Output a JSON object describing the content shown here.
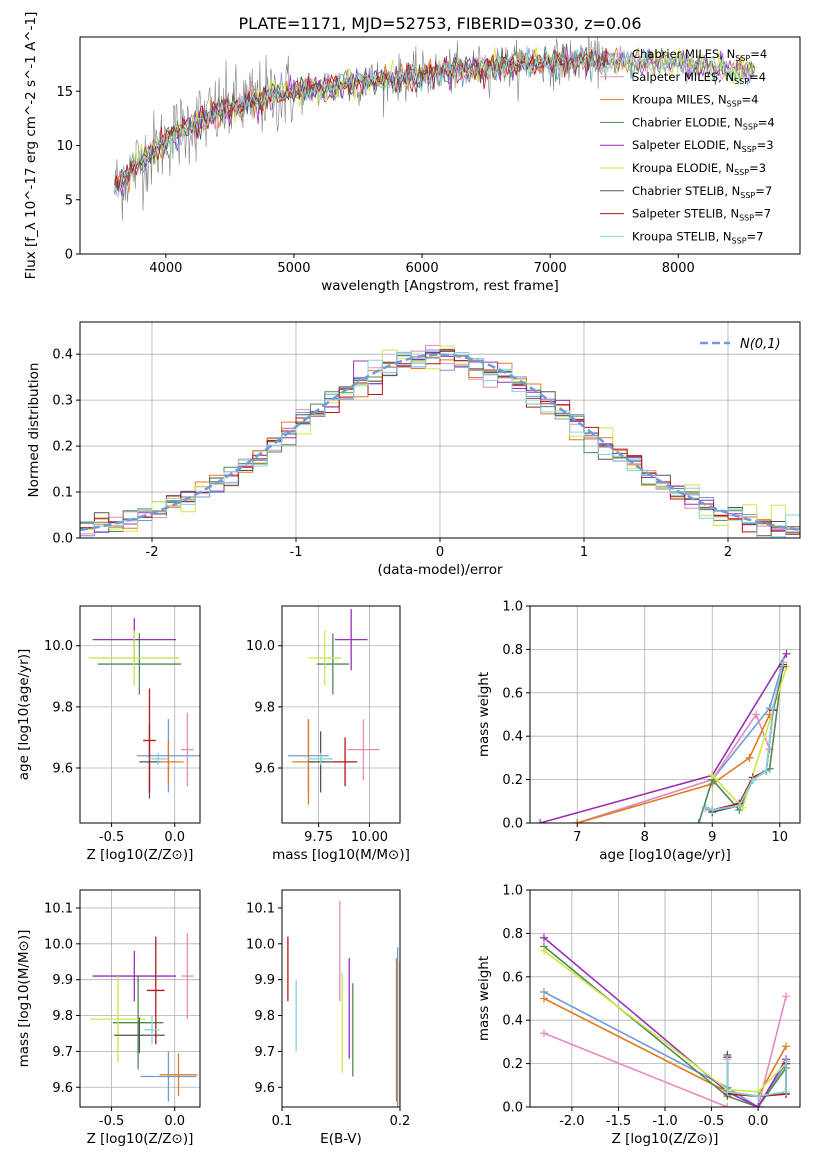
{
  "figure_title": "PLATE=1171, MJD=52753, FIBERID=0330, z=0.06",
  "models": [
    {
      "name": "Chabrier MILES",
      "nssp": "4",
      "color": "#6f9bd8"
    },
    {
      "name": "Salpeter MILES",
      "nssp": "4",
      "color": "#e58cbf"
    },
    {
      "name": "Kroupa MILES",
      "nssp": "4",
      "color": "#e07b22"
    },
    {
      "name": "Chabrier ELODIE",
      "nssp": "4",
      "color": "#4f8a57"
    },
    {
      "name": "Salpeter ELODIE",
      "nssp": "3",
      "color": "#9b30b8"
    },
    {
      "name": "Kroupa ELODIE",
      "nssp": "3",
      "color": "#cde84a"
    },
    {
      "name": "Chabrier STELIB",
      "nssp": "7",
      "color": "#555555"
    },
    {
      "name": "Salpeter STELIB",
      "nssp": "7",
      "color": "#b31717"
    },
    {
      "name": "Kroupa STELIB",
      "nssp": "7",
      "color": "#86d3e0"
    }
  ],
  "chart_data": [
    {
      "id": "spectrum",
      "type": "line",
      "xlabel": "wavelength [Angstrom, rest frame]",
      "ylabel": "Flux [f_λ 10^-17 erg cm^-2 s^-1 A^-1]",
      "xlim": [
        3330,
        8950
      ],
      "ylim": [
        0,
        20
      ],
      "xticks": [
        4000,
        5000,
        6000,
        7000,
        8000
      ],
      "yticks": [
        0,
        5,
        10,
        15
      ],
      "grid": false,
      "legend_position": "right",
      "data_color": "#808080",
      "continuum_x": [
        3600,
        3800,
        4000,
        4200,
        4500,
        4800,
        5000,
        5200,
        5500,
        5800,
        6000,
        6200,
        6500,
        6800,
        7000,
        7200,
        7400,
        7600,
        7800,
        8000,
        8200,
        8400,
        8600
      ],
      "continuum_y": [
        6.0,
        8.5,
        10.5,
        12.0,
        13.5,
        14.5,
        15.0,
        15.3,
        15.8,
        16.2,
        16.5,
        16.8,
        17.2,
        17.5,
        17.6,
        17.8,
        17.8,
        17.9,
        17.7,
        17.5,
        17.3,
        17.0,
        16.8
      ],
      "model_end_x": [
        8600,
        8600,
        8600,
        8600,
        8600,
        8600,
        7450,
        7450,
        8600
      ]
    },
    {
      "id": "residuals",
      "type": "step",
      "xlabel": "(data-model)/error",
      "ylabel": "Normed distribution",
      "xlim": [
        -2.5,
        2.5
      ],
      "ylim": [
        0,
        0.47
      ],
      "xticks": [
        -2,
        -1,
        0,
        1,
        2
      ],
      "yticks": [
        0.0,
        0.1,
        0.2,
        0.3,
        0.4
      ],
      "grid": true,
      "legend": "N(0,1)",
      "gauss_color": "#6f9bd8",
      "bin_width": 0.1
    },
    {
      "id": "age_vs_Z",
      "type": "errorbar",
      "xlabel": "Z [log10(Z/Z⊙)]",
      "ylabel": "age  [log10(age/yr)]",
      "xlim": [
        -0.75,
        0.2
      ],
      "ylim": [
        9.42,
        10.13
      ],
      "xticks": [
        -0.5,
        0.0
      ],
      "yticks": [
        9.6,
        9.8,
        10.0
      ],
      "grid": true,
      "points": [
        {
          "model": 0,
          "x": -0.05,
          "y": 9.64,
          "ex": 0.25,
          "ey": 0.12
        },
        {
          "model": 1,
          "x": 0.1,
          "y": 9.66,
          "ex": 0.05,
          "ey": 0.12
        },
        {
          "model": 2,
          "x": -0.05,
          "y": 9.62,
          "ex": 0.12,
          "ey": 0.07
        },
        {
          "model": 3,
          "x": -0.28,
          "y": 9.94,
          "ex": 0.33,
          "ey": 0.1
        },
        {
          "model": 4,
          "x": -0.32,
          "y": 10.02,
          "ex": 0.33,
          "ey": 0.07
        },
        {
          "model": 5,
          "x": -0.32,
          "y": 9.96,
          "ex": 0.36,
          "ey": 0.09
        },
        {
          "model": 6,
          "x": -0.2,
          "y": 9.62,
          "ex": 0.08,
          "ey": 0.12
        },
        {
          "model": 7,
          "x": -0.2,
          "y": 9.69,
          "ex": 0.05,
          "ey": 0.17
        },
        {
          "model": 8,
          "x": -0.13,
          "y": 9.63,
          "ex": 0.07,
          "ey": 0.02
        }
      ]
    },
    {
      "id": "age_vs_mass",
      "type": "errorbar",
      "xlabel": "mass [log10(M/M⊙)]",
      "ylabel": "",
      "xlim": [
        9.57,
        10.15
      ],
      "ylim": [
        9.42,
        10.13
      ],
      "xticks": [
        9.75,
        10.0
      ],
      "yticks": [
        9.6,
        9.8,
        10.0
      ],
      "grid": true,
      "points": [
        {
          "model": 0,
          "x": 9.7,
          "y": 9.64,
          "ex": 0.1,
          "ey": 0.12
        },
        {
          "model": 1,
          "x": 9.97,
          "y": 9.66,
          "ex": 0.08,
          "ey": 0.1
        },
        {
          "model": 2,
          "x": 9.7,
          "y": 9.62,
          "ex": 0.08,
          "ey": 0.14
        },
        {
          "model": 3,
          "x": 9.82,
          "y": 9.94,
          "ex": 0.08,
          "ey": 0.1
        },
        {
          "model": 4,
          "x": 9.91,
          "y": 10.02,
          "ex": 0.08,
          "ey": 0.1
        },
        {
          "model": 5,
          "x": 9.78,
          "y": 9.96,
          "ex": 0.08,
          "ey": 0.09
        },
        {
          "model": 6,
          "x": 9.76,
          "y": 9.62,
          "ex": 0.06,
          "ey": 0.1
        },
        {
          "model": 7,
          "x": 9.88,
          "y": 9.62,
          "ex": 0.06,
          "ey": 0.08
        },
        {
          "model": 8,
          "x": 9.76,
          "y": 9.63,
          "ex": 0.06,
          "ey": 0.02
        }
      ]
    },
    {
      "id": "massweight_vs_age",
      "type": "line",
      "xlabel": "age  [log10(age/yr)]",
      "ylabel": "mass weight",
      "xlim": [
        6.3,
        10.3
      ],
      "ylim": [
        0,
        1.0
      ],
      "xticks": [
        7,
        8,
        9,
        10
      ],
      "yticks": [
        0.0,
        0.2,
        0.4,
        0.6,
        0.8,
        1.0
      ],
      "grid": true,
      "series": [
        {
          "model": 0,
          "x": [
            7.0,
            9.0,
            9.85,
            10.05
          ],
          "y": [
            0.0,
            0.2,
            0.53,
            0.74
          ]
        },
        {
          "model": 1,
          "x": [
            7.0,
            9.0,
            9.65,
            9.85
          ],
          "y": [
            0.0,
            0.2,
            0.5,
            0.34
          ]
        },
        {
          "model": 2,
          "x": [
            7.0,
            9.0,
            9.55,
            9.85
          ],
          "y": [
            0.0,
            0.18,
            0.3,
            0.5
          ]
        },
        {
          "model": 3,
          "x": [
            8.8,
            9.0,
            9.4,
            9.6,
            9.85,
            10.05
          ],
          "y": [
            0.0,
            0.2,
            0.06,
            0.2,
            0.25,
            0.74
          ]
        },
        {
          "model": 4,
          "x": [
            6.45,
            9.0,
            10.1
          ],
          "y": [
            0.0,
            0.22,
            0.78
          ]
        },
        {
          "model": 5,
          "x": [
            9.0,
            9.45,
            10.1
          ],
          "y": [
            0.22,
            0.07,
            0.72
          ]
        },
        {
          "model": 6,
          "x": [
            8.9,
            9.0,
            9.4,
            9.6,
            9.8,
            9.9,
            10.05
          ],
          "y": [
            0.07,
            0.05,
            0.08,
            0.2,
            0.24,
            0.52,
            0.72
          ]
        },
        {
          "model": 7,
          "x": [
            8.9,
            9.0,
            9.4,
            9.6,
            9.8,
            9.9,
            10.05
          ],
          "y": [
            0.07,
            0.06,
            0.09,
            0.21,
            0.24,
            0.52,
            0.73
          ]
        },
        {
          "model": 8,
          "x": [
            8.9,
            9.0,
            9.4,
            9.6,
            9.8,
            9.9,
            10.05
          ],
          "y": [
            0.07,
            0.06,
            0.08,
            0.2,
            0.24,
            0.53,
            0.74
          ]
        }
      ]
    },
    {
      "id": "mass_vs_Z",
      "type": "errorbar",
      "xlabel": "Z [log10(Z/Z⊙)]",
      "ylabel": "mass [log10(M/M⊙)]",
      "xlim": [
        -0.75,
        0.2
      ],
      "ylim": [
        9.545,
        10.15
      ],
      "xticks": [
        -0.5,
        0.0
      ],
      "yticks": [
        9.6,
        9.7,
        9.8,
        9.9,
        10.0,
        10.1
      ],
      "grid": true,
      "points": [
        {
          "model": 0,
          "x": -0.05,
          "y": 9.63,
          "ex": 0.22,
          "ey": 0.07
        },
        {
          "model": 1,
          "x": 0.1,
          "y": 9.91,
          "ex": 0.05,
          "ey": 0.12
        },
        {
          "model": 2,
          "x": 0.03,
          "y": 9.635,
          "ex": 0.15,
          "ey": 0.06
        },
        {
          "model": 3,
          "x": -0.29,
          "y": 9.78,
          "ex": 0.2,
          "ey": 0.13
        },
        {
          "model": 4,
          "x": -0.32,
          "y": 9.91,
          "ex": 0.33,
          "ey": 0.07
        },
        {
          "model": 5,
          "x": -0.45,
          "y": 9.79,
          "ex": 0.22,
          "ey": 0.12
        },
        {
          "model": 6,
          "x": -0.28,
          "y": 9.745,
          "ex": 0.2,
          "ey": 0.05
        },
        {
          "model": 7,
          "x": -0.15,
          "y": 9.87,
          "ex": 0.07,
          "ey": 0.15
        },
        {
          "model": 8,
          "x": -0.18,
          "y": 9.76,
          "ex": 0.06,
          "ey": 0.04
        }
      ]
    },
    {
      "id": "mass_vs_EBV",
      "type": "errorbar",
      "xlabel": "E(B-V)",
      "ylabel": "",
      "xlim": [
        0.1,
        0.2
      ],
      "ylim": [
        9.545,
        10.15
      ],
      "xticks": [
        0.1,
        0.2
      ],
      "yticks": [
        9.6,
        9.7,
        9.8,
        9.9,
        10.0,
        10.1
      ],
      "grid": false,
      "points": [
        {
          "model": 0,
          "x": 0.198,
          "y": 9.72,
          "ex": 0,
          "ey": 0.27
        },
        {
          "model": 1,
          "x": 0.149,
          "y": 9.98,
          "ex": 0,
          "ey": 0.14
        },
        {
          "model": 2,
          "x": 0.197,
          "y": 9.76,
          "ex": 0,
          "ey": 0.2
        },
        {
          "model": 3,
          "x": 0.16,
          "y": 9.76,
          "ex": 0,
          "ey": 0.13
        },
        {
          "model": 4,
          "x": 0.157,
          "y": 9.82,
          "ex": 0,
          "ey": 0.14
        },
        {
          "model": 5,
          "x": 0.151,
          "y": 9.78,
          "ex": 0,
          "ey": 0.14
        },
        {
          "model": 6,
          "x": 0.2,
          "y": 9.75,
          "ex": 0,
          "ey": 0.2
        },
        {
          "model": 7,
          "x": 0.105,
          "y": 9.93,
          "ex": 0,
          "ey": 0.09
        },
        {
          "model": 8,
          "x": 0.112,
          "y": 9.8,
          "ex": 0,
          "ey": 0.1
        }
      ]
    },
    {
      "id": "massweight_vs_Z",
      "type": "line",
      "xlabel": "Z [log10(Z/Z⊙)]",
      "ylabel": "mass weight",
      "xlim": [
        -2.45,
        0.45
      ],
      "ylim": [
        0,
        1.0
      ],
      "xticks": [
        -2.0,
        -1.5,
        -1.0,
        -0.5,
        0.0
      ],
      "yticks": [
        0.0,
        0.2,
        0.4,
        0.6,
        0.8,
        1.0
      ],
      "grid": true,
      "series": [
        {
          "model": 0,
          "x": [
            -2.3,
            -0.33,
            0.0,
            0.3
          ],
          "y": [
            0.53,
            0.09,
            0.0,
            0.2
          ]
        },
        {
          "model": 1,
          "x": [
            -2.3,
            -0.33,
            0.0,
            0.3
          ],
          "y": [
            0.34,
            0.0,
            0.0,
            0.51
          ]
        },
        {
          "model": 2,
          "x": [
            -2.3,
            -0.33,
            0.0,
            0.3
          ],
          "y": [
            0.5,
            0.07,
            0.05,
            0.28
          ]
        },
        {
          "model": 3,
          "x": [
            -2.3,
            -0.33,
            0.0,
            0.3
          ],
          "y": [
            0.74,
            0.05,
            0.0,
            0.18
          ]
        },
        {
          "model": 4,
          "x": [
            -2.3,
            -0.33,
            0.0,
            0.3
          ],
          "y": [
            0.78,
            0.07,
            0.0,
            0.22
          ]
        },
        {
          "model": 5,
          "x": [
            -2.3,
            -0.33,
            0.0,
            0.3
          ],
          "y": [
            0.72,
            0.08,
            0.07,
            0.2
          ]
        },
        {
          "model": 6,
          "x": [
            -0.33,
            -0.33,
            0.0,
            0.3,
            0.3
          ],
          "y": [
            0.24,
            0.07,
            0.05,
            0.06,
            0.21
          ]
        },
        {
          "model": 7,
          "x": [
            -0.33,
            -0.33,
            0.0,
            0.3,
            0.3
          ],
          "y": [
            0.23,
            0.06,
            0.05,
            0.06,
            0.2
          ]
        },
        {
          "model": 8,
          "x": [
            -0.33,
            -0.33,
            0.0,
            0.3,
            0.3
          ],
          "y": [
            0.22,
            0.07,
            0.05,
            0.07,
            0.21
          ]
        }
      ]
    }
  ]
}
